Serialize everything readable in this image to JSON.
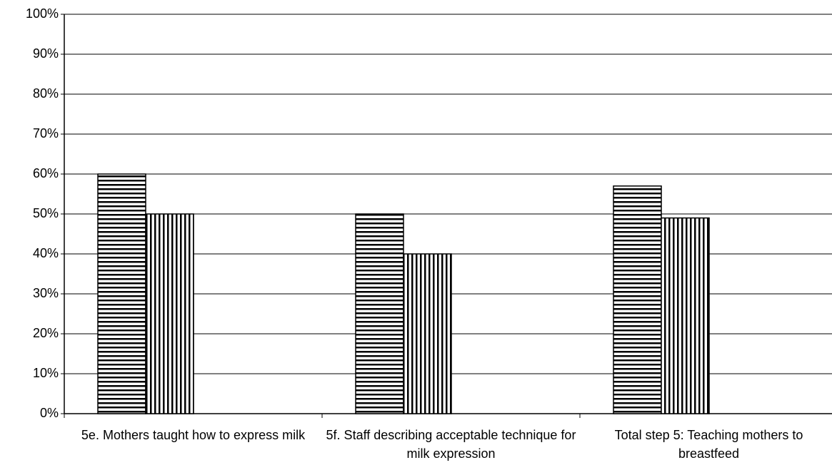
{
  "chart_data": {
    "type": "bar",
    "categories": [
      "5e. Mothers taught how to express milk",
      "5f. Staff describing acceptable technique for milk expression",
      "Total step 5: Teaching mothers to breastfeed"
    ],
    "series": [
      {
        "color": "#000000",
        "pattern": "horizontal",
        "values": [
          60,
          50,
          57
        ]
      },
      {
        "color": "#000000",
        "pattern": "vertical",
        "values": [
          50,
          40,
          49
        ]
      }
    ],
    "ylim": [
      0,
      100
    ],
    "yticks": [
      {
        "value": 0,
        "label": "0%"
      },
      {
        "value": 10,
        "label": "10%"
      },
      {
        "value": 20,
        "label": "20%"
      },
      {
        "value": 30,
        "label": "30%"
      },
      {
        "value": 40,
        "label": "40%"
      },
      {
        "value": 50,
        "label": "50%"
      },
      {
        "value": 60,
        "label": "60%"
      },
      {
        "value": 70,
        "label": "70%"
      },
      {
        "value": 80,
        "label": "80%"
      },
      {
        "value": 90,
        "label": "90%"
      },
      {
        "value": 100,
        "label": "100%"
      }
    ],
    "grid": true
  }
}
